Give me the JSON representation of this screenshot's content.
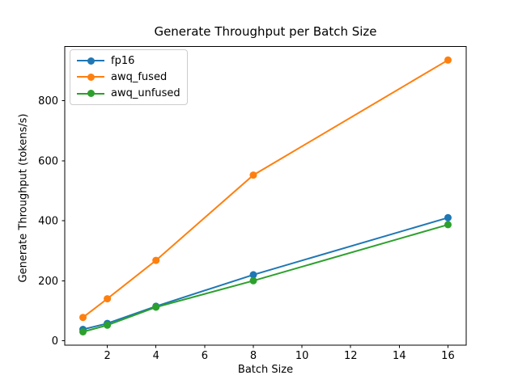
{
  "figure": {
    "title": "Generate Throughput per Batch Size",
    "xlabel": "Batch Size",
    "ylabel": "Generate Throughput (tokens/s)"
  },
  "chart_data": {
    "type": "line",
    "title": "Generate Throughput per Batch Size",
    "xlabel": "Batch Size",
    "ylabel": "Generate Throughput (tokens/s)",
    "x": [
      1,
      2,
      4,
      8,
      16
    ],
    "series": [
      {
        "name": "fp16",
        "color": "#1f77b4",
        "values": [
          38,
          58,
          115,
          220,
          410
        ]
      },
      {
        "name": "awq_fused",
        "color": "#ff7f0e",
        "values": [
          78,
          140,
          268,
          552,
          935
        ]
      },
      {
        "name": "awq_unfused",
        "color": "#2ca02c",
        "values": [
          30,
          52,
          112,
          200,
          387
        ]
      }
    ],
    "xticks": [
      2,
      4,
      6,
      8,
      10,
      12,
      14,
      16
    ],
    "yticks": [
      0,
      200,
      400,
      600,
      800
    ],
    "xlim": [
      0.25,
      16.75
    ],
    "ylim": [
      -15,
      980
    ],
    "legend_position": "upper left",
    "grid": false,
    "marker": "o",
    "line_width": 2,
    "marker_radius": 4.5,
    "frame_color": "#000000"
  }
}
